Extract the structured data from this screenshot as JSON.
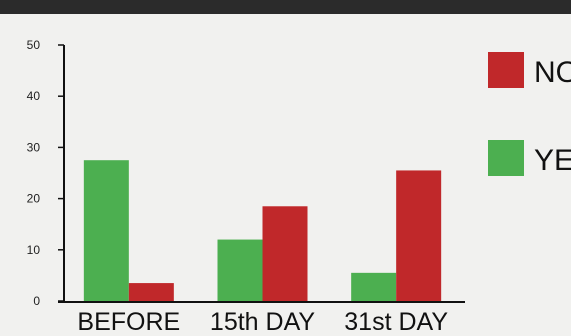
{
  "chart_data": {
    "type": "bar",
    "categories": [
      "BEFORE",
      "15th DAY",
      "31st DAY"
    ],
    "series": [
      {
        "name": "YES",
        "color": "#4caf50",
        "values": [
          27.5,
          12,
          5.5
        ]
      },
      {
        "name": "NO",
        "color": "#c0282a",
        "values": [
          3.5,
          18.5,
          25.5
        ]
      }
    ],
    "ylim": [
      0,
      50
    ],
    "yticks": [
      0,
      10,
      20,
      30,
      40,
      50
    ],
    "legend": {
      "placement": "right",
      "items": [
        {
          "label": "NO",
          "color": "#c0282a"
        },
        {
          "label": "YES",
          "color": "#4caf50"
        }
      ]
    },
    "grid": false
  }
}
